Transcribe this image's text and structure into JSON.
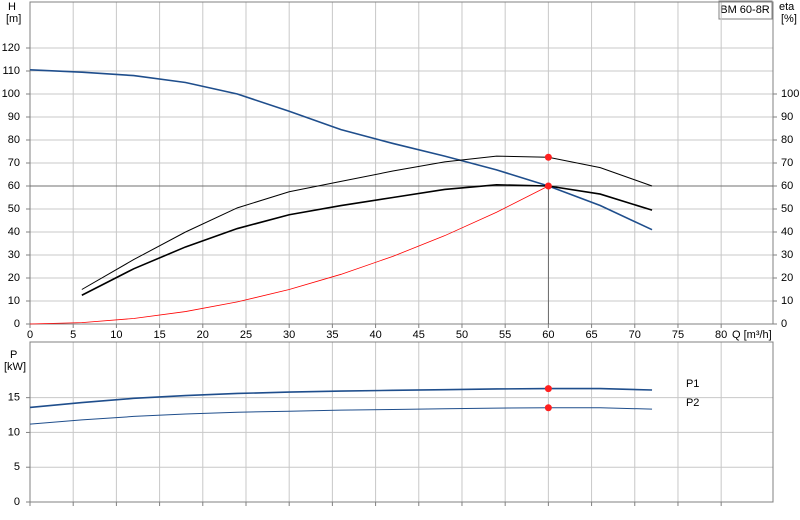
{
  "chart_data": [
    {
      "type": "line",
      "title": "BM 60-8R",
      "y_label": "H",
      "y_unit": "[m]",
      "y2_label": "eta",
      "y2_unit": "[%]",
      "x_label": "Q [m³/h]",
      "xlim": [
        0,
        86
      ],
      "xticks": [
        0,
        5,
        10,
        15,
        20,
        25,
        30,
        35,
        40,
        45,
        50,
        55,
        60,
        65,
        70,
        75,
        80
      ],
      "ylim": [
        0,
        140
      ],
      "yticks": [
        0,
        10,
        20,
        30,
        40,
        50,
        60,
        70,
        80,
        90,
        100,
        110,
        120
      ],
      "y2lim": [
        0,
        140
      ],
      "y2ticks": [
        0,
        10,
        20,
        30,
        40,
        50,
        60,
        70,
        80,
        90,
        100
      ],
      "grid": true,
      "series": [
        {
          "color": "#1f4e8c",
          "x": [
            0,
            6,
            12,
            18,
            24,
            30,
            36,
            42,
            48,
            54,
            60,
            66,
            72
          ],
          "values": [
            110.5,
            109.5,
            108,
            105,
            100,
            92.5,
            84.5,
            78.5,
            73,
            67,
            60,
            51.5,
            41
          ]
        },
        {
          "color": "#000000",
          "axis": "y2",
          "x": [
            6,
            12,
            18,
            24,
            30,
            36,
            42,
            48,
            54,
            60,
            66,
            72
          ],
          "values": [
            15,
            28,
            40,
            50.5,
            57.5,
            62,
            66.5,
            70.5,
            73,
            72.5,
            68,
            60
          ]
        },
        {
          "color": "#000000",
          "axis": "y2",
          "x": [
            6,
            12,
            18,
            24,
            30,
            36,
            42,
            48,
            54,
            60,
            66,
            72
          ],
          "values": [
            12.5,
            24,
            33.5,
            41.5,
            47.5,
            51.5,
            55,
            58.5,
            60.5,
            60,
            56.5,
            49.5
          ]
        },
        {
          "color": "#ff0000",
          "x": [
            0,
            6,
            12,
            18,
            24,
            30,
            36,
            42,
            48,
            54,
            60
          ],
          "values": [
            0,
            0.6,
            2.4,
            5.4,
            9.6,
            15,
            21.6,
            29.4,
            38.4,
            48.6,
            60
          ]
        }
      ],
      "duty_point": {
        "x": 60,
        "y": 60
      },
      "markers": [
        {
          "x": 60,
          "y": 72.5,
          "axis": "y2"
        },
        {
          "x": 60,
          "y": 60
        }
      ]
    },
    {
      "type": "line",
      "y_label": "P",
      "y_unit": "[kW]",
      "xlim": [
        0,
        86
      ],
      "xticks": [
        0,
        5,
        10,
        15,
        20,
        25,
        30,
        35,
        40,
        45,
        50,
        55,
        60,
        65,
        70,
        75,
        80
      ],
      "ylim": [
        0,
        23
      ],
      "yticks": [
        0,
        5,
        10,
        15
      ],
      "grid": true,
      "series": [
        {
          "name": "P1",
          "color": "#1f4e8c",
          "x": [
            0,
            6,
            12,
            18,
            24,
            30,
            36,
            42,
            48,
            54,
            60,
            66,
            72
          ],
          "values": [
            13.6,
            14.3,
            14.9,
            15.3,
            15.6,
            15.8,
            15.95,
            16.05,
            16.15,
            16.25,
            16.3,
            16.3,
            16.1
          ]
        },
        {
          "name": "P2",
          "color": "#1f4e8c",
          "x": [
            0,
            6,
            12,
            18,
            24,
            30,
            36,
            42,
            48,
            54,
            60,
            66,
            72
          ],
          "values": [
            11.2,
            11.8,
            12.3,
            12.65,
            12.9,
            13.05,
            13.2,
            13.3,
            13.4,
            13.5,
            13.55,
            13.55,
            13.35
          ]
        }
      ],
      "markers": [
        {
          "x": 60,
          "y": 16.3
        },
        {
          "x": 60,
          "y": 13.55
        }
      ]
    }
  ]
}
